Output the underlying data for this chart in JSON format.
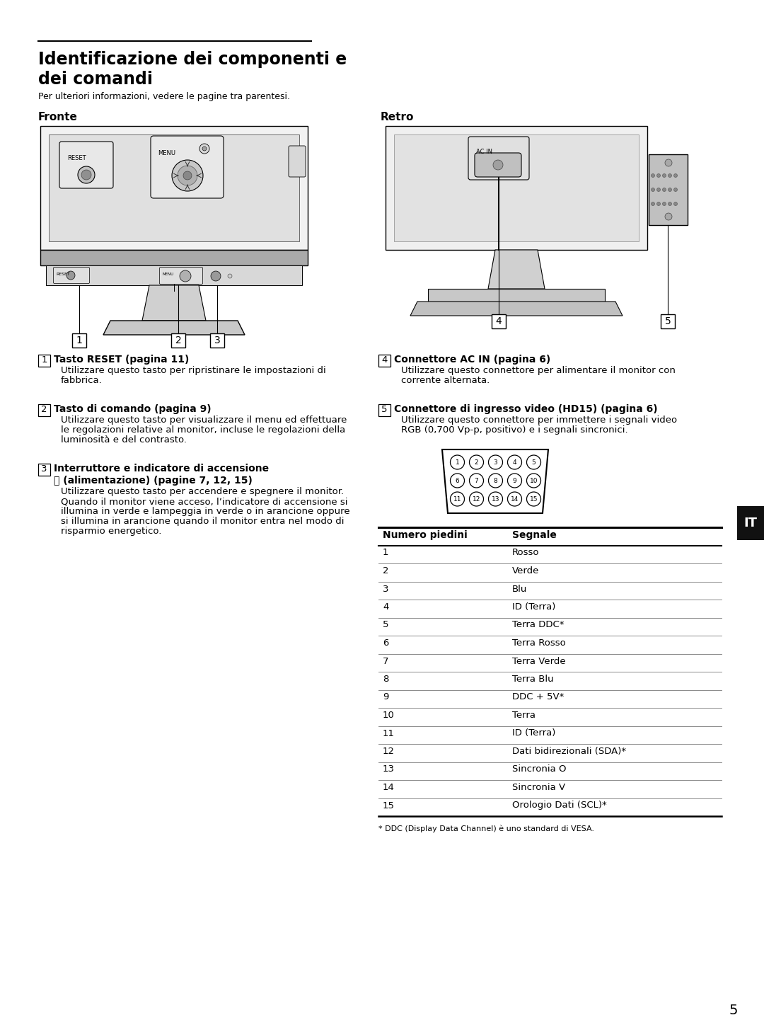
{
  "title_line1": "Identificazione dei componenti e",
  "title_line2": "dei comandi",
  "subtitle": "Per ulteriori informazioni, vedere le pagine tra parentesi.",
  "fronte_label": "Fronte",
  "retro_label": "Retro",
  "s1_title": "Tasto RESET (pagina 11)",
  "s1_body1": "Utilizzare questo tasto per ripristinare le impostazioni di",
  "s1_body2": "fabbrica.",
  "s2_title": "Tasto di comando (pagina 9)",
  "s2_body1": "Utilizzare questo tasto per visualizzare il menu ed effettuare",
  "s2_body2": "le regolazioni relative al monitor, incluse le regolazioni della",
  "s2_body3": "luminosità e del contrasto.",
  "s3_title1": "Interruttore e indicatore di accensione",
  "s3_title2": "ⓘ (alimentazione) (pagine 7, 12, 15)",
  "s3_body1": "Utilizzare questo tasto per accendere e spegnere il monitor.",
  "s3_body2": "Quando il monitor viene acceso, l’indicatore di accensione si",
  "s3_body3": "illumina in verde e lampeggia in verde o in arancione oppure",
  "s3_body4": "si illumina in arancione quando il monitor entra nel modo di",
  "s3_body5": "risparmio energetico.",
  "s4_title": "Connettore AC IN (pagina 6)",
  "s4_body1": "Utilizzare questo connettore per alimentare il monitor con",
  "s4_body2": "corrente alternata.",
  "s5_title": "Connettore di ingresso video (HD15) (pagina 6)",
  "s5_body1": "Utilizzare questo connettore per immettere i segnali video",
  "s5_body2": "RGB (0,700 Vp-p, positivo) e i segnali sincronici.",
  "table_header": [
    "Numero piedini",
    "Segnale"
  ],
  "table_rows": [
    [
      "1",
      "Rosso"
    ],
    [
      "2",
      "Verde"
    ],
    [
      "3",
      "Blu"
    ],
    [
      "4",
      "ID (Terra)"
    ],
    [
      "5",
      "Terra DDC*"
    ],
    [
      "6",
      "Terra Rosso"
    ],
    [
      "7",
      "Terra Verde"
    ],
    [
      "8",
      "Terra Blu"
    ],
    [
      "9",
      "DDC + 5V*"
    ],
    [
      "10",
      "Terra"
    ],
    [
      "11",
      "ID (Terra)"
    ],
    [
      "12",
      "Dati bidirezionali (SDA)*"
    ],
    [
      "13",
      "Sincronia O"
    ],
    [
      "14",
      "Sincronia V"
    ],
    [
      "15",
      "Orologio Dati (SCL)*"
    ]
  ],
  "footnote": "* DDC (Display Data Channel) è uno standard di VESA.",
  "page_number": "5",
  "it_label": "IT"
}
